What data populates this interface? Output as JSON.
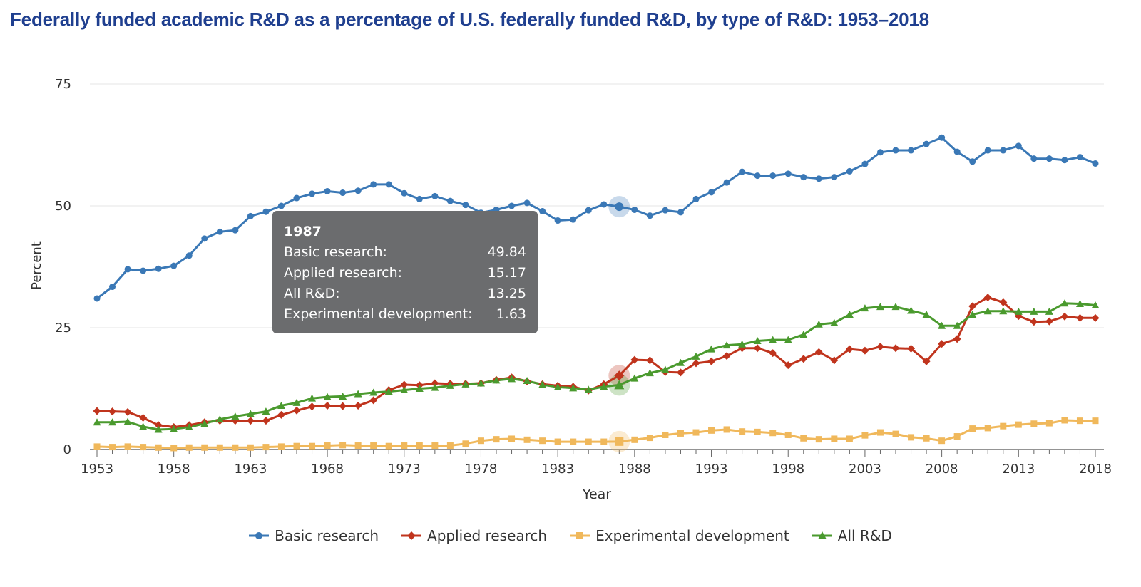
{
  "chart_data": {
    "type": "line",
    "title": "Federally funded academic R&D as a percentage of U.S. federally funded R&D, by type of R&D: 1953–2018",
    "xlabel": "Year",
    "ylabel": "Percent",
    "xlim": [
      1953,
      2018
    ],
    "ylim": [
      0,
      75
    ],
    "yticks": [
      0,
      25,
      50,
      75
    ],
    "xticks": [
      1953,
      1958,
      1963,
      1968,
      1973,
      1978,
      1983,
      1988,
      1993,
      1998,
      2003,
      2008,
      2013,
      2018
    ],
    "grid": "horizontal",
    "legend_position": "bottom",
    "x": [
      1953,
      1954,
      1955,
      1956,
      1957,
      1958,
      1959,
      1960,
      1961,
      1962,
      1963,
      1964,
      1965,
      1966,
      1967,
      1968,
      1969,
      1970,
      1971,
      1972,
      1973,
      1974,
      1975,
      1976,
      1977,
      1978,
      1979,
      1980,
      1981,
      1982,
      1983,
      1984,
      1985,
      1986,
      1987,
      1988,
      1989,
      1990,
      1991,
      1992,
      1993,
      1994,
      1995,
      1996,
      1997,
      1998,
      1999,
      2000,
      2001,
      2002,
      2003,
      2004,
      2005,
      2006,
      2007,
      2008,
      2009,
      2010,
      2011,
      2012,
      2013,
      2014,
      2015,
      2016,
      2017,
      2018
    ],
    "series": [
      {
        "name": "Basic research",
        "color": "#3a78b6",
        "marker": "circle",
        "values": [
          31.0,
          33.4,
          37.0,
          36.7,
          37.1,
          37.7,
          39.8,
          43.3,
          44.7,
          45.0,
          47.9,
          48.8,
          50.0,
          51.6,
          52.5,
          53.0,
          52.7,
          53.1,
          54.4,
          54.4,
          52.6,
          51.4,
          52.0,
          51.0,
          50.2,
          48.6,
          49.2,
          50.0,
          50.6,
          48.9,
          47.0,
          47.2,
          49.1,
          50.3,
          49.84,
          49.2,
          48.0,
          49.1,
          48.7,
          51.4,
          52.8,
          54.8,
          57.0,
          56.2,
          56.2,
          56.6,
          55.9,
          55.6,
          55.9,
          57.1,
          58.6,
          61.0,
          61.4,
          61.4,
          62.7,
          64.0,
          61.1,
          59.1,
          61.4,
          61.4,
          62.3,
          59.7,
          59.7,
          59.4,
          60.0,
          58.7
        ]
      },
      {
        "name": "Applied research",
        "color": "#c0341d",
        "marker": "diamond",
        "values": [
          7.9,
          7.8,
          7.7,
          6.5,
          5.0,
          4.6,
          5.0,
          5.6,
          5.9,
          5.9,
          5.9,
          5.9,
          7.1,
          8.0,
          8.8,
          9.0,
          8.9,
          9.0,
          10.1,
          12.2,
          13.3,
          13.2,
          13.6,
          13.5,
          13.5,
          13.6,
          14.3,
          14.8,
          14.0,
          13.4,
          13.1,
          12.9,
          12.1,
          13.4,
          15.17,
          18.4,
          18.3,
          15.9,
          15.8,
          17.7,
          18.1,
          19.2,
          20.8,
          20.8,
          19.8,
          17.3,
          18.6,
          20.0,
          18.3,
          20.6,
          20.3,
          21.1,
          20.8,
          20.7,
          18.1,
          21.7,
          22.7,
          29.4,
          31.2,
          30.2,
          27.4,
          26.2,
          26.3,
          27.3,
          27.0,
          27.0
        ]
      },
      {
        "name": "Experimental development",
        "color": "#f0b85b",
        "marker": "square",
        "values": [
          0.6,
          0.5,
          0.6,
          0.5,
          0.4,
          0.3,
          0.4,
          0.4,
          0.4,
          0.4,
          0.4,
          0.5,
          0.6,
          0.7,
          0.7,
          0.8,
          0.9,
          0.8,
          0.8,
          0.7,
          0.8,
          0.8,
          0.8,
          0.8,
          1.2,
          1.8,
          2.1,
          2.2,
          2.0,
          1.8,
          1.6,
          1.6,
          1.6,
          1.6,
          1.63,
          2.0,
          2.4,
          3.0,
          3.3,
          3.5,
          3.9,
          4.1,
          3.7,
          3.6,
          3.4,
          3.0,
          2.3,
          2.1,
          2.2,
          2.2,
          2.9,
          3.5,
          3.2,
          2.5,
          2.3,
          1.8,
          2.7,
          4.3,
          4.4,
          4.8,
          5.1,
          5.3,
          5.4,
          6.0,
          5.9,
          5.9
        ]
      },
      {
        "name": "All R&D",
        "color": "#4a9a2e",
        "marker": "triangle",
        "values": [
          5.6,
          5.6,
          5.7,
          4.7,
          4.1,
          4.2,
          4.6,
          5.3,
          6.2,
          6.8,
          7.3,
          7.8,
          9.0,
          9.6,
          10.5,
          10.8,
          10.9,
          11.4,
          11.7,
          11.9,
          12.2,
          12.5,
          12.7,
          13.1,
          13.4,
          13.6,
          14.2,
          14.5,
          14.1,
          13.3,
          12.8,
          12.6,
          12.3,
          12.9,
          13.25,
          14.6,
          15.7,
          16.4,
          17.8,
          19.1,
          20.6,
          21.4,
          21.6,
          22.3,
          22.5,
          22.5,
          23.6,
          25.7,
          26.0,
          27.7,
          29.0,
          29.3,
          29.3,
          28.5,
          27.7,
          25.4,
          25.4,
          27.7,
          28.4,
          28.4,
          28.3,
          28.3,
          28.3,
          30.0,
          29.9,
          29.6
        ]
      }
    ],
    "tooltip": {
      "year": "1987",
      "rows": [
        {
          "label": "Basic research:",
          "value": "49.84"
        },
        {
          "label": "Applied research:",
          "value": "15.17"
        },
        {
          "label": "All R&D:",
          "value": "13.25"
        },
        {
          "label": "Experimental development:",
          "value": "1.63"
        }
      ]
    }
  }
}
